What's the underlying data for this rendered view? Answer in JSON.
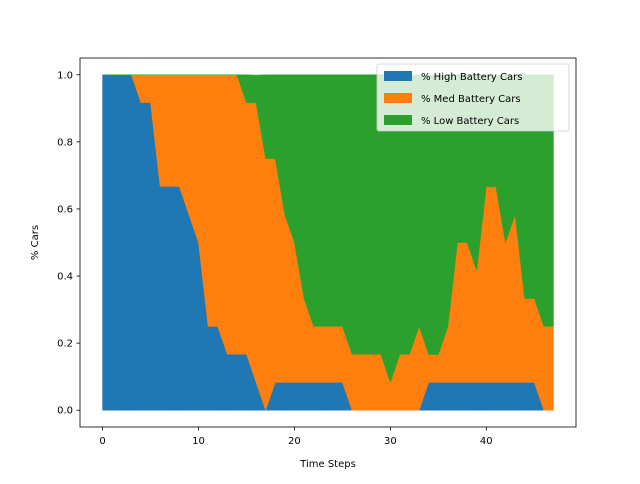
{
  "chart_data": {
    "type": "area",
    "stacked": true,
    "title": "",
    "xlabel": "Time Steps",
    "ylabel": "% Cars",
    "xlim": [
      -2.35,
      49.35
    ],
    "ylim": [
      -0.05,
      1.05
    ],
    "xticks": [
      0,
      10,
      20,
      30,
      40
    ],
    "yticks": [
      0.0,
      0.2,
      0.4,
      0.6,
      0.8,
      1.0
    ],
    "grid": false,
    "legend_position": "top-right",
    "x": [
      0,
      1,
      2,
      3,
      4,
      5,
      6,
      7,
      8,
      9,
      10,
      11,
      12,
      13,
      14,
      15,
      16,
      17,
      18,
      19,
      20,
      21,
      22,
      23,
      24,
      25,
      26,
      27,
      28,
      29,
      30,
      31,
      32,
      33,
      34,
      35,
      36,
      37,
      38,
      39,
      40,
      41,
      42,
      43,
      44,
      45,
      46,
      47
    ],
    "series": [
      {
        "name": "% High Battery Cars",
        "color": "#1f77b4",
        "values": [
          1.0,
          1.0,
          1.0,
          1.0,
          0.917,
          0.917,
          0.667,
          0.667,
          0.667,
          0.583,
          0.5,
          0.25,
          0.25,
          0.167,
          0.167,
          0.167,
          0.083,
          0.0,
          0.083,
          0.083,
          0.083,
          0.083,
          0.083,
          0.083,
          0.083,
          0.083,
          0.0,
          0.0,
          0.0,
          0.0,
          0.0,
          0.0,
          0.0,
          0.0,
          0.083,
          0.083,
          0.083,
          0.083,
          0.083,
          0.083,
          0.083,
          0.083,
          0.083,
          0.083,
          0.083,
          0.083,
          0.0,
          0.0
        ]
      },
      {
        "name": "% Med Battery Cars",
        "color": "#ff7f0e",
        "values": [
          0.0,
          0.0,
          0.0,
          0.0,
          0.083,
          0.083,
          0.333,
          0.333,
          0.333,
          0.417,
          0.5,
          0.75,
          0.75,
          0.833,
          0.833,
          0.75,
          0.833,
          0.75,
          0.667,
          0.5,
          0.417,
          0.25,
          0.167,
          0.167,
          0.167,
          0.167,
          0.167,
          0.167,
          0.167,
          0.167,
          0.083,
          0.167,
          0.167,
          0.25,
          0.083,
          0.083,
          0.167,
          0.417,
          0.417,
          0.333,
          0.583,
          0.583,
          0.417,
          0.5,
          0.25,
          0.25,
          0.25,
          0.25
        ]
      },
      {
        "name": "% Low Battery Cars",
        "color": "#2ca02c",
        "values": [
          0.0,
          0.0,
          0.0,
          0.0,
          0.0,
          0.0,
          0.0,
          0.0,
          0.0,
          0.0,
          0.0,
          0.0,
          0.0,
          0.0,
          0.0,
          0.083,
          0.083,
          0.25,
          0.25,
          0.417,
          0.5,
          0.667,
          0.75,
          0.75,
          0.75,
          0.75,
          0.833,
          0.833,
          0.833,
          0.833,
          0.917,
          0.833,
          0.833,
          0.75,
          0.833,
          0.833,
          0.75,
          0.5,
          0.5,
          0.583,
          0.333,
          0.333,
          0.5,
          0.417,
          0.667,
          0.667,
          0.75,
          0.75
        ]
      }
    ]
  }
}
